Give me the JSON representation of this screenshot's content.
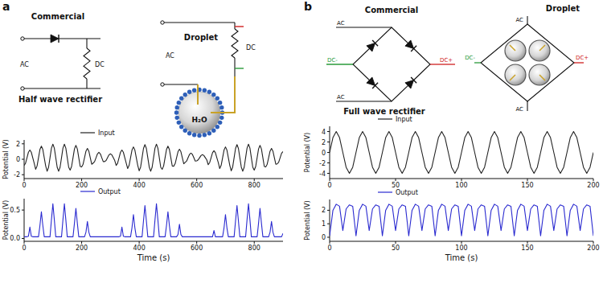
{
  "chart_data": [
    {
      "type": "line",
      "legend": "top",
      "grid": false,
      "ylabel": "Potential (V)",
      "xlim": [
        0,
        900
      ],
      "xticks": [
        0,
        200,
        400,
        600,
        800
      ],
      "ylim": [
        -2.5,
        2.5
      ],
      "yticks": [
        -2,
        0,
        2
      ],
      "x": [
        0,
        5,
        10,
        15,
        20,
        25,
        30,
        35,
        40,
        45,
        50,
        55,
        60,
        65,
        70,
        75,
        80,
        85,
        90,
        95,
        100,
        105,
        110,
        115,
        120,
        125,
        130,
        135,
        140,
        145,
        150,
        155,
        160,
        165,
        170,
        175,
        180,
        185,
        190,
        195,
        200,
        205,
        210,
        215,
        220,
        225,
        230,
        235,
        240,
        245,
        250,
        255,
        260,
        265,
        270,
        275,
        280,
        285,
        290,
        295,
        300,
        305,
        310,
        315,
        320,
        325,
        330,
        335,
        340,
        345,
        350,
        355,
        360,
        365,
        370,
        375,
        380,
        385,
        390,
        395,
        400,
        405,
        410,
        415,
        420,
        425,
        430,
        435,
        440,
        445,
        450,
        455,
        460,
        465,
        470,
        475,
        480,
        485,
        490,
        495,
        500,
        505,
        510,
        515,
        520,
        525,
        530,
        535,
        540,
        545,
        550,
        555,
        560,
        565,
        570,
        575,
        580,
        585,
        590,
        595,
        600,
        605,
        610,
        615,
        620,
        625,
        630,
        635,
        640,
        645,
        650,
        655,
        660,
        665,
        670,
        675,
        680,
        685,
        690,
        695,
        700,
        705,
        710,
        715,
        720,
        725,
        730,
        735,
        740,
        745,
        750,
        755,
        760,
        765,
        770,
        775,
        780,
        785,
        790,
        795,
        800,
        805,
        810,
        815,
        820,
        825,
        830,
        835,
        840,
        845,
        850,
        855,
        860,
        865,
        870,
        875,
        880,
        885,
        890,
        895,
        900
      ],
      "series": [
        {
          "name": "Input",
          "color": "#222222",
          "values": [
            -0.8,
            -0.51,
            0.2,
            0.91,
            1.2,
            0.91,
            0.2,
            -0.51,
            -1.3,
            -0.87,
            0.2,
            1.27,
            1.7,
            1.27,
            0.2,
            -0.87,
            -1.55,
            -1.04,
            0.2,
            1.44,
            1.95,
            1.44,
            0.2,
            -1.04,
            -1.55,
            -1.04,
            0.2,
            1.44,
            1.95,
            1.44,
            0.2,
            -1.04,
            -1.4,
            -0.94,
            0.2,
            1.34,
            1.8,
            1.34,
            0.2,
            -0.94,
            -1.0,
            -0.65,
            0.2,
            1.05,
            1.4,
            1.05,
            0.2,
            -0.65,
            -0.5,
            -0.3,
            0.2,
            0.7,
            0.9,
            0.7,
            0.2,
            -0.3,
            -0.3,
            -0.16,
            0.2,
            0.56,
            0.7,
            0.56,
            0.2,
            -0.16,
            -0.8,
            -0.51,
            0.2,
            0.91,
            1.2,
            0.91,
            0.2,
            -0.51,
            -1.2,
            -0.79,
            0.2,
            1.19,
            1.6,
            1.19,
            0.2,
            -0.79,
            -1.5,
            -1.01,
            0.2,
            1.41,
            1.9,
            1.41,
            0.2,
            -1.01,
            -1.55,
            -1.04,
            0.2,
            1.44,
            1.95,
            1.44,
            0.2,
            -1.04,
            -1.3,
            -0.87,
            0.2,
            1.27,
            1.7,
            1.27,
            0.2,
            -0.87,
            -0.9,
            -0.58,
            0.2,
            0.98,
            1.3,
            0.98,
            0.2,
            -0.58,
            -0.4,
            -0.23,
            0.2,
            0.63,
            0.8,
            0.63,
            0.2,
            -0.23,
            -0.2,
            -0.08,
            0.2,
            0.48,
            0.6,
            0.48,
            0.2,
            -0.08,
            -0.7,
            -0.44,
            0.2,
            0.84,
            1.1,
            0.84,
            0.2,
            -0.44,
            -1.2,
            -0.79,
            0.2,
            1.19,
            1.6,
            1.19,
            0.2,
            -0.79,
            -1.5,
            -1.01,
            0.2,
            1.41,
            1.9,
            1.41,
            0.2,
            -1.01,
            -1.55,
            -1.04,
            0.2,
            1.44,
            1.95,
            1.44,
            0.2,
            -1.04,
            -1.4,
            -0.94,
            0.2,
            1.34,
            1.8,
            1.34,
            0.2,
            -0.94,
            -1.0,
            -0.65,
            0.2,
            1.05,
            1.4,
            1.05,
            0.2,
            -0.65,
            -0.6,
            -0.37,
            0.2,
            0.77,
            1.0
          ]
        }
      ]
    },
    {
      "type": "line",
      "legend": "top",
      "grid": false,
      "ylabel": "Potential (V)",
      "xlabel": "Time (s)",
      "xlim": [
        0,
        900
      ],
      "xticks": [
        0,
        200,
        400,
        600,
        800
      ],
      "ylim": [
        -0.05,
        0.7
      ],
      "yticks": [
        {
          "value": 0,
          "label": "0.0"
        },
        {
          "value": 0.5,
          "label": "0.5"
        }
      ],
      "x": [
        0,
        5,
        10,
        15,
        20,
        25,
        30,
        35,
        40,
        45,
        50,
        55,
        60,
        65,
        70,
        75,
        80,
        85,
        90,
        95,
        100,
        105,
        110,
        115,
        120,
        125,
        130,
        135,
        140,
        145,
        150,
        155,
        160,
        165,
        170,
        175,
        180,
        185,
        190,
        195,
        200,
        205,
        210,
        215,
        220,
        225,
        230,
        235,
        240,
        245,
        250,
        255,
        260,
        265,
        270,
        275,
        280,
        285,
        290,
        295,
        300,
        305,
        310,
        315,
        320,
        325,
        330,
        335,
        340,
        345,
        350,
        355,
        360,
        365,
        370,
        375,
        380,
        385,
        390,
        395,
        400,
        405,
        410,
        415,
        420,
        425,
        430,
        435,
        440,
        445,
        450,
        455,
        460,
        465,
        470,
        475,
        480,
        485,
        490,
        495,
        500,
        505,
        510,
        515,
        520,
        525,
        530,
        535,
        540,
        545,
        550,
        555,
        560,
        565,
        570,
        575,
        580,
        585,
        590,
        595,
        600,
        605,
        610,
        615,
        620,
        625,
        630,
        635,
        640,
        645,
        650,
        655,
        660,
        665,
        670,
        675,
        680,
        685,
        690,
        695,
        700,
        705,
        710,
        715,
        720,
        725,
        730,
        735,
        740,
        745,
        750,
        755,
        760,
        765,
        770,
        775,
        780,
        785,
        790,
        795,
        800,
        805,
        810,
        815,
        820,
        825,
        830,
        835,
        840,
        845,
        850,
        855,
        860,
        865,
        870,
        875,
        880,
        885,
        890,
        895,
        900
      ],
      "series": [
        {
          "name": "Output",
          "color": "#2b2bd0",
          "values": [
            0.03,
            0.03,
            0.03,
            0.04,
            0.2,
            0.04,
            0.03,
            0.03,
            0.03,
            0.03,
            0.03,
            0.23,
            0.47,
            0.23,
            0.03,
            0.03,
            0.03,
            0.03,
            0.03,
            0.33,
            0.61,
            0.33,
            0.03,
            0.03,
            0.03,
            0.03,
            0.03,
            0.33,
            0.61,
            0.33,
            0.03,
            0.03,
            0.03,
            0.03,
            0.03,
            0.27,
            0.53,
            0.27,
            0.03,
            0.03,
            0.03,
            0.03,
            0.03,
            0.11,
            0.3,
            0.11,
            0.03,
            0.03,
            0.03,
            0.03,
            0.03,
            0.03,
            0.03,
            0.03,
            0.03,
            0.03,
            0.03,
            0.03,
            0.03,
            0.03,
            0.03,
            0.03,
            0.03,
            0.03,
            0.03,
            0.03,
            0.03,
            0.04,
            0.2,
            0.04,
            0.03,
            0.03,
            0.03,
            0.03,
            0.03,
            0.19,
            0.42,
            0.19,
            0.03,
            0.03,
            0.03,
            0.03,
            0.03,
            0.31,
            0.58,
            0.31,
            0.03,
            0.03,
            0.03,
            0.03,
            0.03,
            0.33,
            0.61,
            0.33,
            0.03,
            0.03,
            0.03,
            0.03,
            0.03,
            0.23,
            0.47,
            0.23,
            0.03,
            0.03,
            0.03,
            0.03,
            0.03,
            0.07,
            0.25,
            0.07,
            0.03,
            0.03,
            0.03,
            0.03,
            0.03,
            0.03,
            0.03,
            0.03,
            0.03,
            0.03,
            0.03,
            0.03,
            0.03,
            0.03,
            0.03,
            0.03,
            0.03,
            0.03,
            0.03,
            0.03,
            0.03,
            0.03,
            0.14,
            0.03,
            0.03,
            0.03,
            0.03,
            0.03,
            0.03,
            0.19,
            0.42,
            0.19,
            0.03,
            0.03,
            0.03,
            0.03,
            0.03,
            0.31,
            0.58,
            0.31,
            0.03,
            0.03,
            0.03,
            0.03,
            0.03,
            0.33,
            0.61,
            0.33,
            0.03,
            0.03,
            0.03,
            0.03,
            0.03,
            0.27,
            0.53,
            0.27,
            0.03,
            0.03,
            0.03,
            0.03,
            0.03,
            0.11,
            0.3,
            0.11,
            0.03,
            0.03,
            0.03,
            0.03,
            0.03,
            0.03,
            0.09
          ]
        }
      ]
    },
    {
      "type": "line",
      "legend": "top",
      "grid": false,
      "ylabel": "Potential (V)",
      "xlim": [
        0,
        200
      ],
      "xticks": [
        0,
        50,
        100,
        150,
        200
      ],
      "ylim": [
        -5,
        5
      ],
      "yticks": [
        -4,
        -2,
        0,
        2,
        4
      ],
      "x": [
        0,
        2.5,
        5,
        7.5,
        10,
        12.5,
        15,
        17.5,
        20,
        22.5,
        25,
        27.5,
        30,
        32.5,
        35,
        37.5,
        40,
        42.5,
        45,
        47.5,
        50,
        52.5,
        55,
        57.5,
        60,
        62.5,
        65,
        67.5,
        70,
        72.5,
        75,
        77.5,
        80,
        82.5,
        85,
        87.5,
        90,
        92.5,
        95,
        97.5,
        100,
        102.5,
        105,
        107.5,
        110,
        112.5,
        115,
        117.5,
        120,
        122.5,
        125,
        127.5,
        130,
        132.5,
        135,
        137.5,
        140,
        142.5,
        145,
        147.5,
        150,
        152.5,
        155,
        157.5,
        160,
        162.5,
        165,
        167.5,
        170,
        172.5,
        175,
        177.5,
        180,
        182.5,
        185,
        187.5,
        190,
        192.5,
        195,
        197.5,
        200
      ],
      "series": [
        {
          "name": "Input",
          "color": "#222222",
          "values": [
            0,
            2.83,
            4,
            2.83,
            0,
            -2.83,
            -4,
            -2.83,
            0,
            2.83,
            4,
            2.83,
            0,
            -2.83,
            -4,
            -2.83,
            0,
            2.83,
            4,
            2.83,
            0,
            -2.83,
            -4,
            -2.83,
            0,
            2.83,
            4,
            2.83,
            0,
            -2.83,
            -4,
            -2.83,
            0,
            2.83,
            4,
            2.83,
            0,
            -2.83,
            -4,
            -2.83,
            0,
            2.83,
            4,
            2.83,
            0,
            -2.83,
            -4,
            -2.83,
            0,
            2.83,
            4,
            2.83,
            0,
            -2.83,
            -4,
            -2.83,
            0,
            2.83,
            4,
            2.83,
            0,
            -2.83,
            -4,
            -2.83,
            0,
            2.83,
            4,
            2.83,
            0,
            -2.83,
            -4,
            -2.83,
            0,
            2.83,
            4,
            2.83,
            0,
            -2.83,
            -4,
            -2.83,
            0
          ]
        }
      ]
    },
    {
      "type": "line",
      "legend": "top",
      "grid": false,
      "ylabel": "Potential (V)",
      "xlabel": "Time (s)",
      "xlim": [
        0,
        200
      ],
      "xticks": [
        0,
        50,
        100,
        150,
        200
      ],
      "ylim": [
        -0.3,
        2.8
      ],
      "yticks": [
        0,
        1,
        2
      ],
      "x": [
        0,
        2.5,
        5,
        7.5,
        10,
        12.5,
        15,
        17.5,
        20,
        22.5,
        25,
        27.5,
        30,
        32.5,
        35,
        37.5,
        40,
        42.5,
        45,
        47.5,
        50,
        52.5,
        55,
        57.5,
        60,
        62.5,
        65,
        67.5,
        70,
        72.5,
        75,
        77.5,
        80,
        82.5,
        85,
        87.5,
        90,
        92.5,
        95,
        97.5,
        100,
        102.5,
        105,
        107.5,
        110,
        112.5,
        115,
        117.5,
        120,
        122.5,
        125,
        127.5,
        130,
        132.5,
        135,
        137.5,
        140,
        142.5,
        145,
        147.5,
        150,
        152.5,
        155,
        157.5,
        160,
        162.5,
        165,
        167.5,
        170,
        172.5,
        175,
        177.5,
        180,
        182.5,
        185,
        187.5,
        190,
        192.5,
        195,
        197.5,
        200
      ],
      "series": [
        {
          "name": "Output",
          "color": "#2b2bd0",
          "values": [
            0.1,
            2.0,
            2.45,
            2.3,
            0.5,
            2.1,
            2.4,
            2.3,
            0.1,
            2.0,
            2.45,
            2.3,
            0.5,
            2.1,
            2.4,
            2.3,
            0.1,
            2.0,
            2.45,
            2.3,
            0.5,
            2.1,
            2.4,
            2.3,
            0.1,
            2.0,
            2.45,
            2.3,
            0.5,
            2.1,
            2.4,
            2.3,
            0.1,
            2.0,
            2.45,
            2.3,
            0.5,
            2.1,
            2.4,
            2.3,
            0.1,
            2.0,
            2.45,
            2.3,
            0.5,
            2.1,
            2.4,
            2.3,
            0.1,
            2.0,
            2.45,
            2.3,
            0.5,
            2.1,
            2.4,
            2.3,
            0.1,
            2.0,
            2.45,
            2.3,
            0.5,
            2.1,
            2.4,
            2.3,
            0.1,
            2.0,
            2.45,
            2.3,
            0.5,
            2.1,
            2.4,
            2.3,
            0.1,
            2.0,
            2.45,
            2.3,
            0.5,
            2.1,
            2.4,
            2.3,
            0.1
          ]
        }
      ]
    }
  ],
  "diagrams": {
    "panel_labels": [
      "a",
      "b"
    ],
    "half_wave_commercial": {
      "title": "Commercial",
      "caption": "Half wave rectifier",
      "input": "AC",
      "output": "DC"
    },
    "half_wave_droplet": {
      "title": "Droplet",
      "input": "AC",
      "output": "DC",
      "droplet": "H₂O"
    },
    "full_wave_commercial": {
      "title": "Commercial",
      "caption": "Full wave rectifier",
      "input_top": "AC",
      "input_bottom": "AC",
      "output_minus": "DC-",
      "output_plus": "DC+"
    },
    "full_wave_droplet": {
      "title": "Droplet",
      "input_top": "AC",
      "input_bottom": "AC",
      "output_minus": "DC-",
      "output_plus": "DC+"
    }
  }
}
